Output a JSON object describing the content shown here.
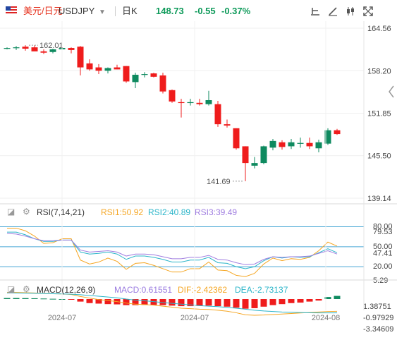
{
  "header": {
    "pair_name": "美元/日元",
    "symbol": "USDJPY",
    "interval": "日K",
    "last_price": "148.73",
    "change": "-0.55",
    "change_pct": "-0.37%",
    "price_color": "#0e9a5a",
    "toolbar_icons": [
      "crosshair-icon",
      "drawing-icon",
      "candle-type-icon",
      "fullscreen-icon"
    ]
  },
  "colors": {
    "up": "#0e8a5f",
    "down": "#ef1c1c",
    "rsi1": "#f5a623",
    "rsi2": "#2bb5c9",
    "rsi3": "#a07ee0",
    "dif": "#f5a623",
    "dea": "#2bb5c9"
  },
  "chart_data": [
    {
      "type": "candlestick",
      "y_ticks": [
        "164.56",
        "158.20",
        "151.85",
        "145.50",
        "139.14"
      ],
      "ylim": [
        139.14,
        164.56
      ],
      "x_ticks": [
        "2024-07",
        "2024-07",
        "2024-08"
      ],
      "annotations": [
        {
          "text": "162.01"
        },
        {
          "text": "141.69"
        }
      ],
      "candles": [
        [
          161.55,
          161.7,
          161.4,
          161.6
        ],
        [
          161.6,
          161.9,
          161.3,
          161.7
        ],
        [
          161.8,
          162.01,
          161.2,
          161.5
        ],
        [
          161.7,
          162.0,
          161.2,
          161.1
        ],
        [
          161.1,
          161.4,
          160.7,
          160.9
        ],
        [
          161.0,
          161.5,
          160.8,
          161.4
        ],
        [
          161.4,
          161.8,
          161.2,
          161.6
        ],
        [
          161.6,
          161.7,
          160.8,
          161.3
        ],
        [
          161.8,
          161.9,
          157.5,
          158.7
        ],
        [
          159.3,
          159.9,
          158.2,
          158.4
        ],
        [
          158.7,
          159.2,
          157.7,
          158.2
        ],
        [
          158.2,
          158.7,
          157.8,
          158.6
        ],
        [
          158.7,
          159.1,
          158.4,
          158.4
        ],
        [
          158.9,
          158.9,
          156.4,
          156.6
        ],
        [
          156.5,
          157.9,
          155.6,
          157.6
        ],
        [
          157.7,
          158.0,
          157.2,
          157.7
        ],
        [
          157.8,
          157.9,
          157.2,
          157.3
        ],
        [
          157.5,
          157.9,
          154.8,
          155.1
        ],
        [
          155.3,
          155.4,
          153.4,
          153.6
        ],
        [
          153.5,
          154.0,
          151.2,
          153.4
        ],
        [
          153.4,
          154.0,
          153.0,
          153.5
        ],
        [
          153.4,
          154.0,
          153.0,
          153.2
        ],
        [
          153.2,
          155.2,
          153.0,
          153.8
        ],
        [
          153.2,
          153.7,
          149.8,
          150.2
        ],
        [
          150.2,
          150.9,
          149.7,
          150.0
        ],
        [
          149.6,
          149.6,
          146.4,
          146.6
        ],
        [
          146.9,
          146.9,
          141.69,
          144.4
        ],
        [
          144.0,
          145.3,
          143.6,
          144.4
        ],
        [
          144.4,
          147.0,
          144.2,
          146.9
        ],
        [
          146.7,
          148.0,
          146.3,
          147.7
        ],
        [
          147.5,
          147.8,
          146.4,
          146.8
        ],
        [
          146.9,
          148.0,
          146.5,
          147.5
        ],
        [
          147.3,
          148.2,
          146.7,
          147.4
        ],
        [
          147.4,
          148.2,
          146.5,
          146.9
        ],
        [
          146.6,
          147.9,
          146.0,
          147.5
        ],
        [
          147.3,
          149.6,
          147.1,
          149.3
        ],
        [
          149.3,
          149.5,
          148.6,
          148.73
        ]
      ]
    },
    {
      "type": "line",
      "indicator": "RSI",
      "params": "RSI(7,14,21)",
      "labels": {
        "rsi1": "RSI1:50.92",
        "rsi2": "RSI2:40.89",
        "rsi3": "RSI3:39.49"
      },
      "y_ticks": [
        "80.00",
        "79.53",
        "50.00",
        "47.41",
        "20.00",
        "5.29"
      ],
      "levels": [
        80,
        50,
        20
      ],
      "ylim": [
        5.29,
        79.53
      ],
      "series": [
        {
          "key": "rsi1",
          "values": [
            78,
            78,
            74,
            66,
            55,
            56,
            62,
            62,
            30,
            24,
            27,
            33,
            28,
            16,
            25,
            26,
            22,
            17,
            12,
            12,
            17,
            17,
            27,
            15,
            14,
            7,
            5,
            10,
            24,
            33,
            29,
            32,
            31,
            34,
            44,
            57,
            51
          ]
        },
        {
          "key": "rsi2",
          "values": [
            72,
            72,
            68,
            62,
            58,
            58,
            60,
            60,
            42,
            39,
            40,
            42,
            39,
            31,
            36,
            36,
            34,
            31,
            27,
            27,
            30,
            30,
            34,
            26,
            25,
            20,
            17,
            20,
            29,
            35,
            33,
            35,
            34,
            35,
            41,
            47,
            41
          ]
        },
        {
          "key": "rsi3",
          "values": [
            70,
            69,
            66,
            62,
            59,
            59,
            60,
            60,
            45,
            42,
            43,
            44,
            42,
            36,
            39,
            39,
            38,
            35,
            32,
            32,
            34,
            34,
            37,
            31,
            30,
            26,
            23,
            24,
            31,
            35,
            34,
            35,
            35,
            36,
            40,
            44,
            39
          ]
        }
      ]
    },
    {
      "type": "bar_line",
      "indicator": "MACD",
      "params": "MACD(12,26,9)",
      "labels": {
        "macd": "MACD:0.61551",
        "dif": "DIF:-2.42362",
        "dea": "DEA:-2.73137"
      },
      "y_ticks": [
        "1.38751",
        "-0.97929",
        "-3.34609"
      ],
      "ylim": [
        -3.34609,
        1.38751
      ],
      "macd": [
        0.2,
        0.2,
        0.18,
        0.15,
        0.1,
        0.05,
        0.0,
        -0.05,
        -0.5,
        -0.8,
        -0.9,
        -1.0,
        -1.05,
        -1.2,
        -1.2,
        -1.15,
        -1.15,
        -1.2,
        -1.3,
        -1.4,
        -1.4,
        -1.35,
        -1.3,
        -1.4,
        -1.5,
        -1.7,
        -1.9,
        -1.8,
        -1.5,
        -1.2,
        -1.0,
        -0.8,
        -0.7,
        -0.5,
        -0.3,
        0.4,
        0.62
      ],
      "dif": [
        1.3,
        1.3,
        1.25,
        1.2,
        1.1,
        1.05,
        1.0,
        0.9,
        0.5,
        0.2,
        -0.1,
        -0.3,
        -0.5,
        -0.8,
        -1.0,
        -1.1,
        -1.2,
        -1.4,
        -1.6,
        -1.8,
        -1.9,
        -2.0,
        -2.05,
        -2.2,
        -2.4,
        -2.7,
        -3.1,
        -3.2,
        -3.15,
        -3.05,
        -2.95,
        -2.85,
        -2.75,
        -2.65,
        -2.55,
        -2.45,
        -2.42
      ],
      "dea": [
        1.2,
        1.2,
        1.17,
        1.13,
        1.08,
        1.04,
        1.0,
        0.96,
        0.85,
        0.7,
        0.55,
        0.4,
        0.25,
        0.0,
        -0.2,
        -0.35,
        -0.5,
        -0.7,
        -0.85,
        -1.0,
        -1.15,
        -1.3,
        -1.4,
        -1.5,
        -1.65,
        -1.8,
        -2.0,
        -2.2,
        -2.35,
        -2.45,
        -2.55,
        -2.6,
        -2.65,
        -2.7,
        -2.72,
        -2.73,
        -2.73
      ]
    }
  ]
}
